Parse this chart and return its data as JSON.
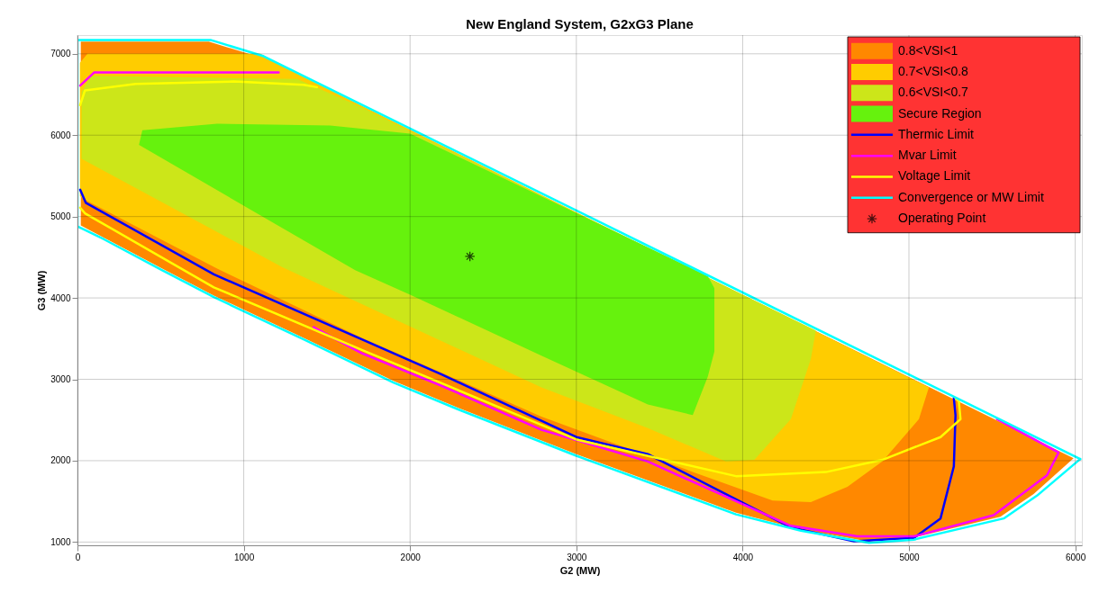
{
  "chart_data": {
    "type": "area",
    "title": "New England System, G2xG3 Plane",
    "xlabel": "G2 (MW)",
    "ylabel": "G3 (MW)",
    "xlim": [
      0,
      6040
    ],
    "ylim": [
      960,
      7230
    ],
    "xticks": [
      0,
      1000,
      2000,
      3000,
      4000,
      5000,
      6000
    ],
    "yticks": [
      1000,
      2000,
      3000,
      4000,
      5000,
      6000,
      7000
    ],
    "grid": true,
    "legend": "top right",
    "series": [
      {
        "name": "0.8<VSI<1",
        "color": "#ff8800",
        "x": [
          20,
          20,
          790,
          1110,
          5990,
          5750,
          5550,
          5020,
          4750,
          4340,
          3960,
          3000,
          2290,
          1900,
          1360,
          820,
          510,
          160,
          20
        ],
        "values": [
          4890,
          7150,
          7150,
          6950,
          2030,
          1590,
          1310,
          1050,
          1010,
          1160,
          1360,
          2080,
          2650,
          2980,
          3510,
          4030,
          4360,
          4740,
          4890
        ]
      },
      {
        "name": "0.7<VSI<0.8",
        "color": "#ffcc00",
        "x": [
          15,
          60,
          1100,
          1250,
          5120,
          5060,
          4840,
          4630,
          4410,
          4180,
          3430,
          2790,
          2190,
          1710,
          840,
          50,
          15,
          15
        ],
        "values": [
          6890,
          7000,
          7000,
          6830,
          2900,
          2510,
          1990,
          1680,
          1490,
          1510,
          2060,
          2540,
          3080,
          3510,
          4360,
          5200,
          5250,
          6890
        ]
      },
      {
        "name": "0.6<VSI<0.7",
        "color": "#cce619",
        "x": [
          25,
          80,
          1320,
          1700,
          4440,
          4410,
          4290,
          4070,
          3900,
          3430,
          2790,
          1230,
          25,
          25
        ],
        "values": [
          6530,
          6730,
          6690,
          6350,
          3600,
          3250,
          2510,
          2010,
          1990,
          2400,
          2900,
          4380,
          5710,
          6530
        ]
      },
      {
        "name": "Secure Region",
        "color": "#66f20d",
        "x": [
          370,
          390,
          840,
          1520,
          2000,
          3790,
          3830,
          3830,
          3790,
          3700,
          3430,
          2790,
          2000,
          1670,
          370
        ],
        "values": [
          5880,
          6060,
          6140,
          6120,
          6020,
          4270,
          4120,
          3340,
          3030,
          2560,
          2690,
          3290,
          4040,
          4340,
          5880
        ]
      },
      {
        "type": "line",
        "name": "Thermic Limit",
        "color": "#0000ff",
        "x": [
          16,
          50,
          820,
          1710,
          2190,
          3000,
          3430,
          4290,
          4670,
          5030,
          5190,
          5270,
          5280,
          5270
        ],
        "values": [
          5330,
          5170,
          4290,
          3490,
          3060,
          2290,
          2080,
          1180,
          1010,
          1050,
          1290,
          1930,
          2560,
          2770
        ]
      },
      {
        "type": "line",
        "name": "Mvar Limit",
        "color": "#ff00ff",
        "x": [
          16,
          100,
          1210,
          null,
          1420,
          1710,
          2190,
          2790,
          3430,
          4290,
          4690,
          5030,
          5510,
          5830,
          5900,
          5530
        ],
        "values": [
          6610,
          6770,
          6770,
          null,
          3640,
          3320,
          2920,
          2380,
          1990,
          1200,
          1070,
          1070,
          1330,
          1820,
          2100,
          2510
        ]
      },
      {
        "type": "line",
        "name": "Voltage Limit",
        "color": "#ffff00",
        "x": [
          16,
          45,
          350,
          940,
          1360,
          1440,
          null,
          16,
          45,
          820,
          1710,
          3000,
          3960,
          4500,
          4840,
          5190,
          5310,
          5300,
          5280
        ],
        "values": [
          6370,
          6550,
          6630,
          6660,
          6620,
          6590,
          null,
          5110,
          5040,
          4130,
          3360,
          2260,
          1810,
          1860,
          2010,
          2290,
          2510,
          2730,
          2770
        ]
      },
      {
        "type": "line",
        "name": "Convergence or MW Limit",
        "color": "#00ffff",
        "x": [
          0,
          0,
          800,
          1120,
          6030,
          null,
          0,
          160,
          510,
          820,
          1360,
          1900,
          2290,
          3000,
          3960,
          4350,
          4760,
          5030,
          5570,
          5770,
          6030
        ],
        "values": [
          4880,
          7170,
          7170,
          6970,
          2020,
          null,
          4880,
          4720,
          4340,
          4010,
          3490,
          2960,
          2630,
          2060,
          1340,
          1140,
          990,
          1030,
          1290,
          1570,
          2020
        ]
      },
      {
        "type": "scatter",
        "name": "Operating Point",
        "color": "#000000",
        "marker": "cross",
        "x": [
          2360
        ],
        "values": [
          4510
        ]
      }
    ]
  }
}
